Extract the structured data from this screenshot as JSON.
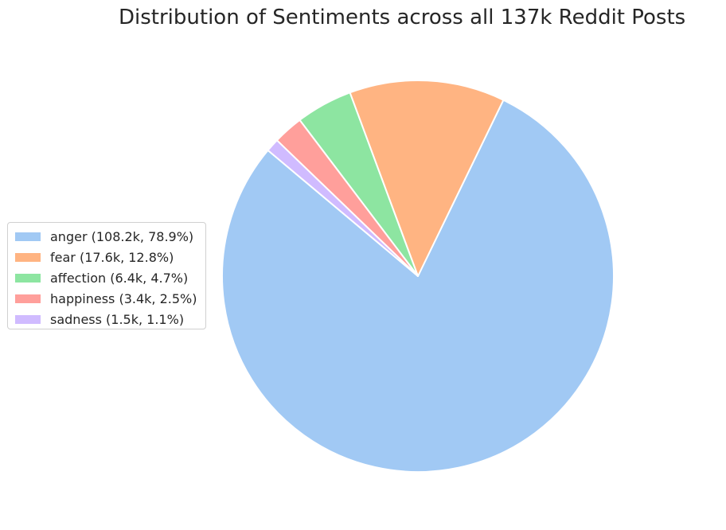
{
  "chart_data": {
    "type": "pie",
    "title": "Distribution of Sentiments across all 137k Reddit Posts",
    "start_angle_deg": 140,
    "direction": "counterclockwise",
    "slices": [
      {
        "label": "anger",
        "value": 108.2,
        "percent": 78.9,
        "legend": "anger (108.2k, 78.9%)",
        "color": "#a1c9f4"
      },
      {
        "label": "fear",
        "value": 17.6,
        "percent": 12.8,
        "legend": "fear (17.6k, 12.8%)",
        "color": "#ffb482"
      },
      {
        "label": "affection",
        "value": 6.4,
        "percent": 4.7,
        "legend": "affection (6.4k, 4.7%)",
        "color": "#8de5a1"
      },
      {
        "label": "happiness",
        "value": 3.4,
        "percent": 2.5,
        "legend": "happiness (3.4k, 2.5%)",
        "color": "#ff9f9b"
      },
      {
        "label": "sadness",
        "value": 1.5,
        "percent": 1.1,
        "legend": "sadness (1.5k, 1.1%)",
        "color": "#d0bbff"
      }
    ],
    "legend_position": "center-left"
  }
}
